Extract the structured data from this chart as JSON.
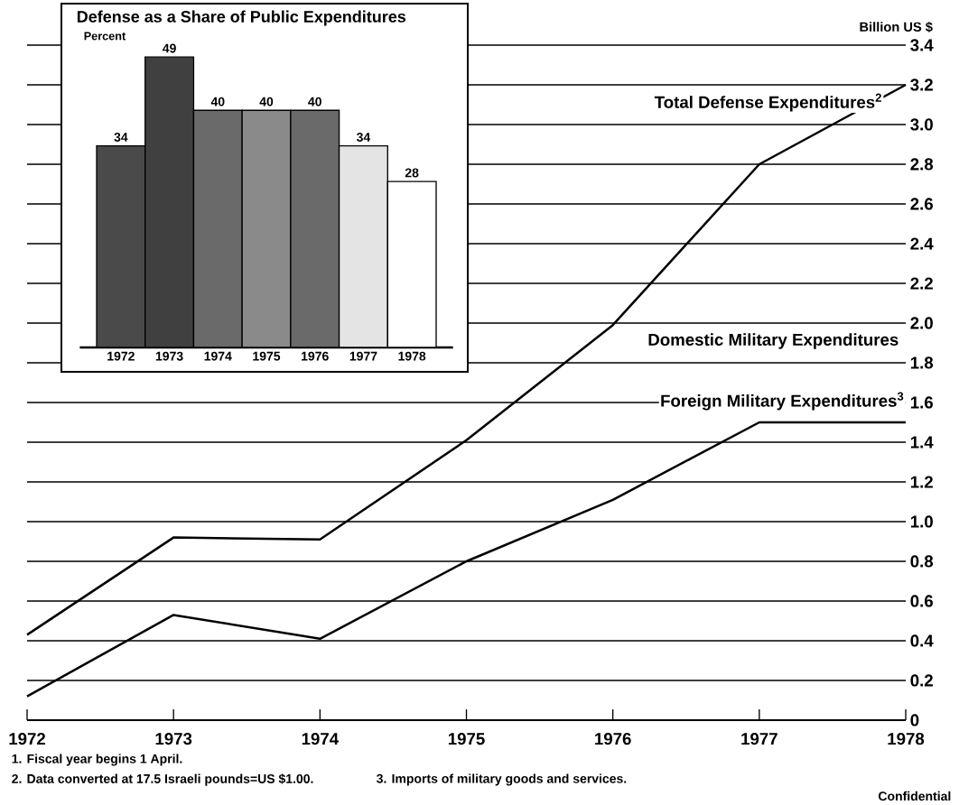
{
  "chart_data": [
    {
      "type": "bar",
      "title": "Defense as a Share of Public Expenditures",
      "ylabel": "Percent",
      "categories": [
        "1972",
        "1973",
        "1974",
        "1975",
        "1976",
        "1977",
        "1978"
      ],
      "values": [
        34,
        49,
        40,
        40,
        40,
        34,
        28
      ],
      "colors": [
        "#4a4a4a",
        "#404040",
        "#6a6a6a",
        "#8a8a8a",
        "#6a6a6a",
        "#e4e4e4",
        "#ffffff"
      ],
      "data_labels": true,
      "tick_labels": "x"
    },
    {
      "type": "line",
      "ylabel": "Billion US $",
      "x": [
        1972,
        1973,
        1974,
        1975,
        1976,
        1977,
        1978
      ],
      "series": [
        {
          "name": "Total Defense Expenditures$^{2}$",
          "color": "#000000",
          "values": [
            0.43,
            0.92,
            0.91,
            1.41,
            1.99,
            2.8,
            3.2
          ]
        },
        {
          "name": "Foreign Military Expenditures$^{3}$",
          "color": "#000000",
          "values": [
            0.12,
            0.53,
            0.41,
            0.8,
            1.11,
            1.5,
            1.5
          ]
        }
      ],
      "xlim": [
        1972,
        1978
      ],
      "ylim": [
        0,
        3.4
      ],
      "xticks": [
        1972,
        1973,
        1974,
        1975,
        1976,
        1977,
        1978
      ],
      "yticks": [
        0,
        0.2,
        0.4,
        0.6,
        0.8,
        {
          "value": 1.0,
          "label": "1.0"
        },
        1.2,
        1.4,
        1.6,
        1.8,
        {
          "value": 2.0,
          "label": "2.0"
        },
        2.2,
        2.4,
        2.6,
        2.8,
        {
          "value": 3.0,
          "label": "3.0"
        },
        3.2,
        3.4
      ],
      "grid": "y",
      "annotations": [
        "Domestic Military Expenditures",
        "1. Fiscal year begins 1 April.",
        "2. Data converted at 17.5 Israeli pounds=US $1.00.",
        "3. Imports of military goods and services.",
        "Confidential"
      ]
    }
  ]
}
